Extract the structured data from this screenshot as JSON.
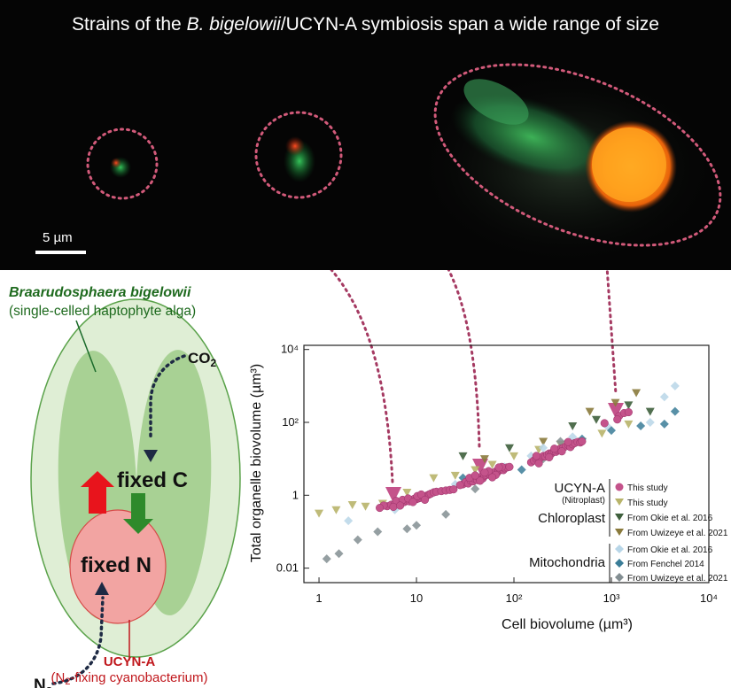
{
  "photo": {
    "title_prefix": "Strains of the ",
    "title_italic": "B. bigelowii",
    "title_suffix": "/UCYN-A symbiosis span a wide range of size",
    "scalebar_label": "5 µm"
  },
  "diagram": {
    "host_name": "Braarudosphaera bigelowii",
    "host_desc": "(single-celled haptophyte alga)",
    "co2_label": "CO",
    "co2_sub": "2",
    "fixed_c_label": "fixed C",
    "fixed_n_label": "fixed N",
    "n2_label": "N",
    "n2_sub": "2",
    "symbiont_name": "UCYN-A",
    "symbiont_desc_prefix": "(N",
    "symbiont_desc_sub": "2",
    "symbiont_desc_suffix": "-fixing cyanobacterium)",
    "colors": {
      "host_outer": "#dfeed5",
      "host_lobes": "#9fcb88",
      "symbiont_fill": "#f2a4a2",
      "red_arrow": "#e8141c",
      "green_arrow": "#2e8a2b",
      "host_text": "#1e6a1e",
      "symbiont_text": "#c0171c"
    }
  },
  "chart_data": {
    "type": "scatter",
    "xlabel": "Cell biovolume (µm³)",
    "ylabel": "Total organelle biovolume (µm³)",
    "x_scale": "log",
    "y_scale": "log",
    "xlim": [
      0.7,
      10000
    ],
    "ylim": [
      0.004,
      13000
    ],
    "x_ticks": [
      {
        "value": 1,
        "label": "1"
      },
      {
        "value": 10,
        "label": "10"
      },
      {
        "value": 100,
        "label": "10²"
      },
      {
        "value": 1000,
        "label": "10³"
      },
      {
        "value": 10000,
        "label": "10⁴"
      }
    ],
    "y_ticks": [
      {
        "value": 0.01,
        "label": "0.01"
      },
      {
        "value": 1,
        "label": "1"
      },
      {
        "value": 100,
        "label": "10²"
      },
      {
        "value": 10000,
        "label": "10⁴"
      }
    ],
    "legend": {
      "groups": [
        {
          "name": "UCYN-A",
          "sub": "(Nitroplast)",
          "entries": [
            "This study"
          ]
        },
        {
          "name": "Chloroplast",
          "entries": [
            "This study",
            "From Okie et al. 2016",
            "From Uwizeye et al. 2021"
          ]
        },
        {
          "name": "Mitochondria",
          "entries": [
            "From Okie et al. 2016",
            "From Fenchel 2014",
            "From Uwizeye et al. 2021"
          ]
        }
      ]
    },
    "series": [
      {
        "name": "UCYN-A This study",
        "marker": "circle",
        "color": "#c4538b",
        "points": [
          [
            5.0,
            0.5
          ],
          [
            5.5,
            0.55
          ],
          [
            6,
            0.58
          ],
          [
            6.5,
            0.62
          ],
          [
            7,
            0.6
          ],
          [
            7.5,
            0.65
          ],
          [
            8,
            0.7
          ],
          [
            8.5,
            0.68
          ],
          [
            9,
            0.75
          ],
          [
            9.5,
            0.8
          ],
          [
            10,
            0.78
          ],
          [
            10.5,
            0.82
          ],
          [
            11,
            0.85
          ],
          [
            11.5,
            0.9
          ],
          [
            12,
            0.88
          ],
          [
            12.5,
            0.95
          ],
          [
            13,
            1.0
          ],
          [
            13.5,
            1.05
          ],
          [
            14,
            1.1
          ],
          [
            6.2,
            0.7
          ],
          [
            7.2,
            0.75
          ],
          [
            8.2,
            0.82
          ],
          [
            9.2,
            0.65
          ],
          [
            10.2,
            0.95
          ],
          [
            11.2,
            1.05
          ],
          [
            12.2,
            0.75
          ],
          [
            5.8,
            0.48
          ],
          [
            6.8,
            0.52
          ],
          [
            15,
            1.2
          ],
          [
            16,
            1.25
          ],
          [
            18,
            1.3
          ],
          [
            20,
            1.35
          ],
          [
            22,
            1.4
          ],
          [
            24,
            1.45
          ],
          [
            4.6,
            0.52
          ],
          [
            4.2,
            0.45
          ],
          [
            30,
            2.0
          ],
          [
            32,
            2.3
          ],
          [
            34,
            2.1
          ],
          [
            36,
            2.5
          ],
          [
            38,
            2.4
          ],
          [
            40,
            2.8
          ],
          [
            42,
            2.6
          ],
          [
            44,
            3.0
          ],
          [
            46,
            3.2
          ],
          [
            48,
            2.9
          ],
          [
            50,
            3.4
          ],
          [
            52,
            3.6
          ],
          [
            55,
            3.8
          ],
          [
            58,
            3.5
          ],
          [
            60,
            4.0
          ],
          [
            62,
            4.2
          ],
          [
            65,
            4.5
          ],
          [
            68,
            4.3
          ],
          [
            70,
            4.8
          ],
          [
            72,
            5.0
          ],
          [
            75,
            5.2
          ],
          [
            78,
            4.9
          ],
          [
            80,
            5.5
          ],
          [
            85,
            5.8
          ],
          [
            90,
            6.0
          ],
          [
            35,
            3.0
          ],
          [
            45,
            2.5
          ],
          [
            55,
            4.6
          ],
          [
            65,
            3.6
          ],
          [
            75,
            6.0
          ],
          [
            28,
            1.9
          ],
          [
            40,
            3.5
          ],
          [
            50,
            4.2
          ],
          [
            60,
            3.1
          ],
          [
            70,
            5.8
          ],
          [
            150,
            8
          ],
          [
            160,
            9
          ],
          [
            170,
            10
          ],
          [
            180,
            9.5
          ],
          [
            190,
            11
          ],
          [
            200,
            12
          ],
          [
            210,
            11.5
          ],
          [
            220,
            13
          ],
          [
            230,
            14
          ],
          [
            240,
            13.5
          ],
          [
            250,
            15
          ],
          [
            260,
            16
          ],
          [
            270,
            15.5
          ],
          [
            280,
            17
          ],
          [
            290,
            18
          ],
          [
            300,
            19
          ],
          [
            320,
            20
          ],
          [
            340,
            22
          ],
          [
            360,
            24
          ],
          [
            380,
            21
          ],
          [
            400,
            25
          ],
          [
            420,
            27
          ],
          [
            450,
            29
          ],
          [
            480,
            28
          ],
          [
            500,
            30
          ],
          [
            170,
            12
          ],
          [
            230,
            11
          ],
          [
            260,
            19
          ],
          [
            310,
            16
          ],
          [
            360,
            29
          ],
          [
            180,
            7.5
          ],
          [
            1200,
            150
          ],
          [
            1350,
            180
          ],
          [
            1500,
            190
          ],
          [
            1150,
            120
          ],
          [
            850,
            95
          ]
        ]
      },
      {
        "name": "Chloroplast This study",
        "marker": "triangle",
        "color": "#b8b46a",
        "points": [
          [
            1,
            0.32
          ],
          [
            1.5,
            0.4
          ],
          [
            2.2,
            0.55
          ],
          [
            3,
            0.5
          ],
          [
            4.5,
            0.6
          ],
          [
            8,
            1.2
          ],
          [
            15,
            3
          ],
          [
            25,
            3.5
          ],
          [
            40,
            5
          ],
          [
            60,
            7
          ],
          [
            100,
            12
          ],
          [
            180,
            18
          ],
          [
            300,
            25
          ],
          [
            500,
            30
          ],
          [
            800,
            50
          ],
          [
            1500,
            90
          ]
        ]
      },
      {
        "name": "Chloroplast From Okie et al. 2016",
        "marker": "triangle",
        "color": "#3e5f3c",
        "points": [
          [
            30,
            12
          ],
          [
            90,
            20
          ],
          [
            400,
            80
          ],
          [
            700,
            120
          ],
          [
            1500,
            300
          ],
          [
            2500,
            200
          ]
        ]
      },
      {
        "name": "Chloroplast From Uwizeye et al. 2021",
        "marker": "triangle",
        "color": "#8a7a3c",
        "points": [
          [
            50,
            10
          ],
          [
            200,
            30
          ],
          [
            600,
            200
          ],
          [
            1800,
            650
          ],
          [
            1100,
            350
          ]
        ]
      },
      {
        "name": "Mitochondria From Okie et al. 2016",
        "marker": "diamond",
        "color": "#b8d6e8",
        "points": [
          [
            2,
            0.2
          ],
          [
            6,
            0.4
          ],
          [
            15,
            1.2
          ],
          [
            25,
            2
          ],
          [
            80,
            6
          ],
          [
            150,
            12
          ],
          [
            400,
            40
          ],
          [
            900,
            80
          ],
          [
            2500,
            100
          ],
          [
            4500,
            1000
          ],
          [
            3500,
            500
          ],
          [
            200,
            20
          ]
        ]
      },
      {
        "name": "Mitochondria From Fenchel 2014",
        "marker": "diamond",
        "color": "#3b7d98",
        "points": [
          [
            30,
            3
          ],
          [
            120,
            5
          ],
          [
            500,
            35
          ],
          [
            1000,
            60
          ],
          [
            2000,
            80
          ],
          [
            4500,
            200
          ],
          [
            3500,
            90
          ]
        ]
      },
      {
        "name": "Mitochondria From Uwizeye et al. 2021",
        "marker": "diamond",
        "color": "#838e92",
        "points": [
          [
            1.2,
            0.018
          ],
          [
            1.6,
            0.025
          ],
          [
            2.5,
            0.06
          ],
          [
            4,
            0.1
          ],
          [
            8,
            0.12
          ],
          [
            10,
            0.15
          ],
          [
            20,
            0.3
          ],
          [
            12,
            0.8
          ],
          [
            40,
            1.5
          ],
          [
            200,
            10
          ],
          [
            300,
            30
          ]
        ]
      }
    ]
  }
}
